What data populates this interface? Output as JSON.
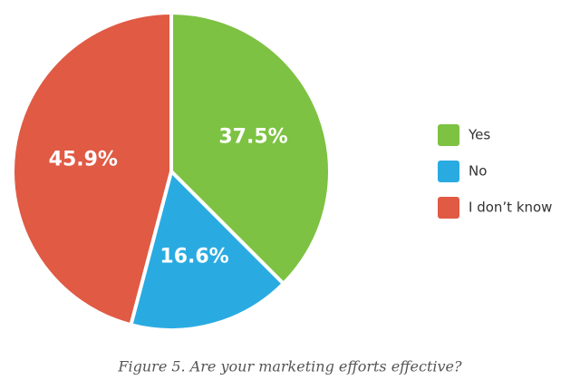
{
  "chart_data": {
    "type": "pie",
    "title": "Figure 5. Are your marketing efforts effective?",
    "categories": [
      "Yes",
      "No",
      "I don’t know"
    ],
    "values": [
      37.5,
      16.6,
      45.9
    ],
    "value_labels": [
      "37.5%",
      "16.6%",
      "45.9%"
    ],
    "colors": [
      "#7dc242",
      "#29abe2",
      "#e05a44"
    ],
    "legend": "right"
  }
}
